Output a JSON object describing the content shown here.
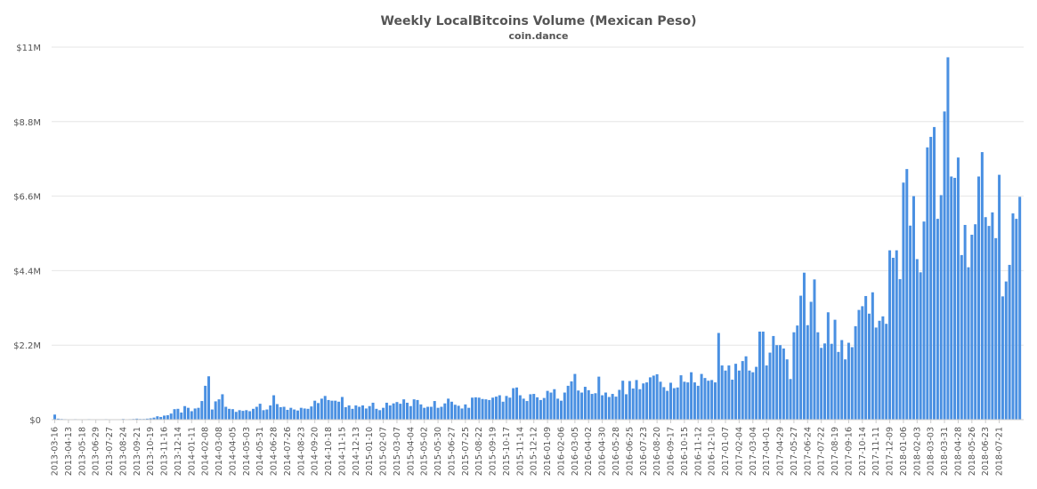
{
  "chart_data": {
    "type": "bar",
    "title": "Weekly LocalBitcoins Volume (Mexican Peso)",
    "subtitle": "coin.dance",
    "xlabel": "",
    "ylabel": "",
    "y_tick_labels": [
      "$0",
      "$2.2M",
      "$4.4M",
      "$6.6M",
      "$8.8M",
      "$11M"
    ],
    "y_tick_values": [
      0,
      2200000,
      4400000,
      6600000,
      8800000,
      11000000
    ],
    "ylim": [
      0,
      11000000
    ],
    "grid": "horizontal",
    "legend": "none",
    "bar_color": "#4a90e2",
    "x_tick_labels": [
      "2013-03-16",
      "2013-04-13",
      "2013-05-18",
      "2013-06-29",
      "2013-07-27",
      "2013-08-24",
      "2013-09-21",
      "2013-10-19",
      "2013-11-16",
      "2013-12-14",
      "2014-01-11",
      "2014-02-08",
      "2014-03-08",
      "2014-04-05",
      "2014-05-03",
      "2014-05-31",
      "2014-06-28",
      "2014-07-26",
      "2014-08-23",
      "2014-09-20",
      "2014-10-18",
      "2014-11-15",
      "2014-12-13",
      "2015-01-10",
      "2015-02-07",
      "2015-03-07",
      "2015-04-04",
      "2015-05-02",
      "2015-05-30",
      "2015-06-27",
      "2015-07-25",
      "2015-08-22",
      "2015-09-19",
      "2015-10-17",
      "2015-11-14",
      "2015-12-12",
      "2016-01-09",
      "2016-02-06",
      "2016-03-05",
      "2016-04-02",
      "2016-04-30",
      "2016-05-28",
      "2016-06-25",
      "2016-07-23",
      "2016-08-20",
      "2016-09-17",
      "2016-10-15",
      "2016-11-12",
      "2016-12-10",
      "2017-01-07",
      "2017-02-04",
      "2017-03-04",
      "2017-04-01",
      "2017-04-29",
      "2017-05-27",
      "2017-06-24",
      "2017-07-22",
      "2017-08-19",
      "2017-09-16",
      "2017-10-14",
      "2017-11-11",
      "2017-12-09",
      "2018-01-06",
      "2018-02-03",
      "2018-03-03",
      "2018-03-31",
      "2018-04-28",
      "2018-05-26",
      "2018-06-23",
      "2018-07-21"
    ],
    "values": [
      150000,
      30000,
      20000,
      15000,
      10000,
      10000,
      15000,
      10000,
      10000,
      10000,
      15000,
      10000,
      10000,
      10000,
      10000,
      15000,
      10000,
      10000,
      10000,
      10000,
      20000,
      10000,
      15000,
      20000,
      30000,
      20000,
      20000,
      30000,
      40000,
      60000,
      100000,
      80000,
      120000,
      130000,
      180000,
      310000,
      320000,
      210000,
      400000,
      350000,
      250000,
      330000,
      350000,
      550000,
      1000000,
      1280000,
      300000,
      540000,
      600000,
      750000,
      380000,
      320000,
      310000,
      230000,
      280000,
      260000,
      280000,
      250000,
      320000,
      380000,
      470000,
      280000,
      300000,
      420000,
      720000,
      460000,
      370000,
      380000,
      290000,
      350000,
      300000,
      270000,
      350000,
      330000,
      320000,
      390000,
      560000,
      490000,
      620000,
      700000,
      580000,
      560000,
      560000,
      530000,
      670000,
      370000,
      420000,
      320000,
      420000,
      380000,
      420000,
      330000,
      400000,
      500000,
      320000,
      280000,
      350000,
      500000,
      420000,
      480000,
      520000,
      470000,
      600000,
      500000,
      400000,
      600000,
      580000,
      450000,
      350000,
      380000,
      380000,
      550000,
      350000,
      380000,
      480000,
      620000,
      530000,
      440000,
      410000,
      330000,
      450000,
      350000,
      650000,
      660000,
      650000,
      610000,
      600000,
      580000,
      650000,
      680000,
      720000,
      530000,
      700000,
      650000,
      930000,
      950000,
      720000,
      620000,
      550000,
      750000,
      760000,
      660000,
      580000,
      640000,
      850000,
      800000,
      900000,
      620000,
      560000,
      800000,
      1000000,
      1130000,
      1350000,
      860000,
      800000,
      970000,
      870000,
      760000,
      780000,
      1270000,
      720000,
      800000,
      670000,
      760000,
      680000,
      880000,
      1150000,
      750000,
      1140000,
      920000,
      1170000,
      900000,
      1070000,
      1100000,
      1250000,
      1300000,
      1340000,
      1120000,
      960000,
      850000,
      1090000,
      930000,
      950000,
      1310000,
      1120000,
      1100000,
      1400000,
      1100000,
      1000000,
      1350000,
      1230000,
      1150000,
      1170000,
      1100000,
      2560000,
      1600000,
      1450000,
      1600000,
      1180000,
      1650000,
      1450000,
      1730000,
      1870000,
      1450000,
      1400000,
      1560000,
      2600000,
      2600000,
      1600000,
      1980000,
      2470000,
      2200000,
      2200000,
      2100000,
      1780000,
      1200000,
      2580000,
      2780000,
      3660000,
      4340000,
      2790000,
      3480000,
      4140000,
      2580000,
      2120000,
      2250000,
      3170000,
      2240000,
      2950000,
      2000000,
      2350000,
      1780000,
      2270000,
      2140000,
      2760000,
      3240000,
      3350000,
      3650000,
      3130000,
      3760000,
      2720000,
      2920000,
      3050000,
      2830000,
      5000000,
      4780000,
      5000000,
      4150000,
      7000000,
      7400000,
      5730000,
      6600000,
      4740000,
      4350000,
      5850000,
      8040000,
      8350000,
      8640000,
      5930000,
      6630000,
      9100000,
      10700000,
      7180000,
      7140000,
      7740000,
      4860000,
      5750000,
      4500000,
      5460000,
      5770000,
      7180000,
      7900000,
      5980000,
      5720000,
      6120000,
      5360000,
      7230000,
      3640000,
      4080000,
      4570000,
      6090000,
      5930000,
      6580000
    ]
  }
}
